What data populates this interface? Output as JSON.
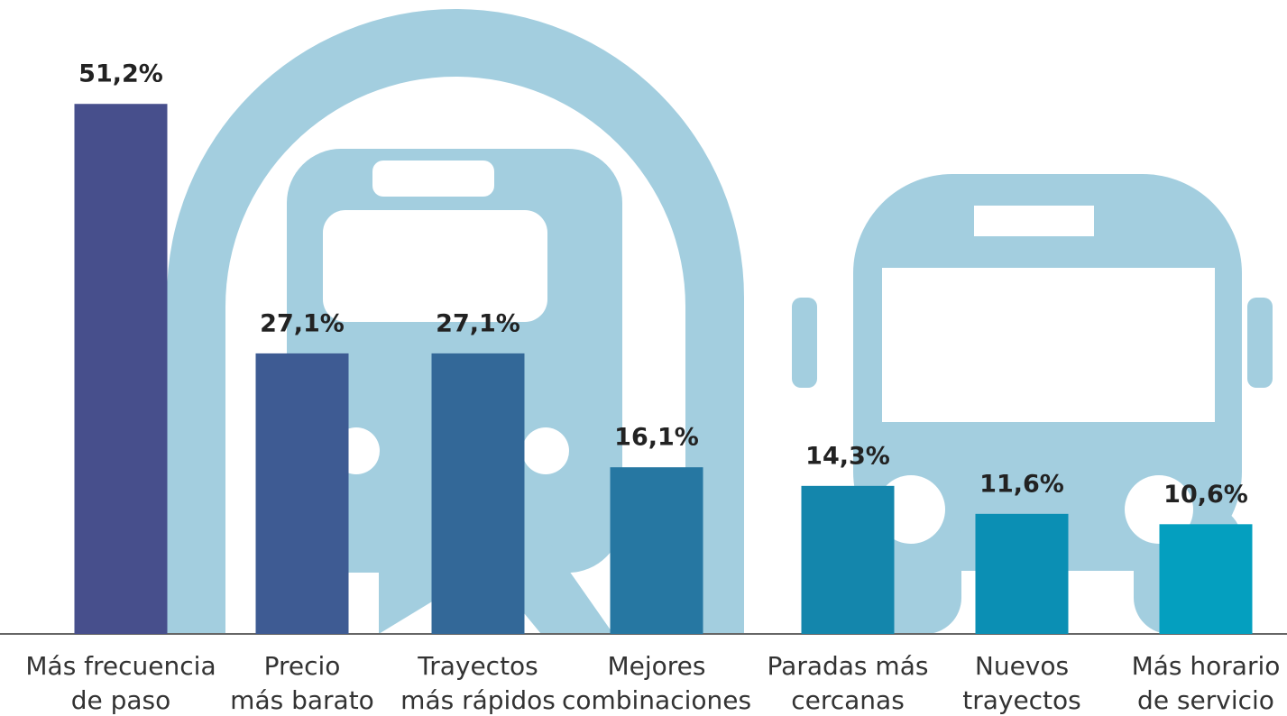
{
  "chart_data": {
    "type": "bar",
    "categories": [
      "Más frecuencia\nde paso",
      "Precio\nmás barato",
      "Trayectos\nmás rápidos",
      "Mejores\ncombinaciones",
      "Paradas más\ncercanas",
      "Nuevos\ntrayectos",
      "Más horario\nde servicio"
    ],
    "values": [
      51.2,
      27.1,
      27.1,
      16.1,
      14.3,
      11.6,
      10.6
    ],
    "value_labels": [
      "51,2%",
      "27,1%",
      "27,1%",
      "16,1%",
      "14,3%",
      "11,6%",
      "10,6%"
    ],
    "colors": [
      "#474f8c",
      "#3e5b93",
      "#336898",
      "#2677a2",
      "#1486ac",
      "#0b8fb4",
      "#049fbf"
    ]
  }
}
